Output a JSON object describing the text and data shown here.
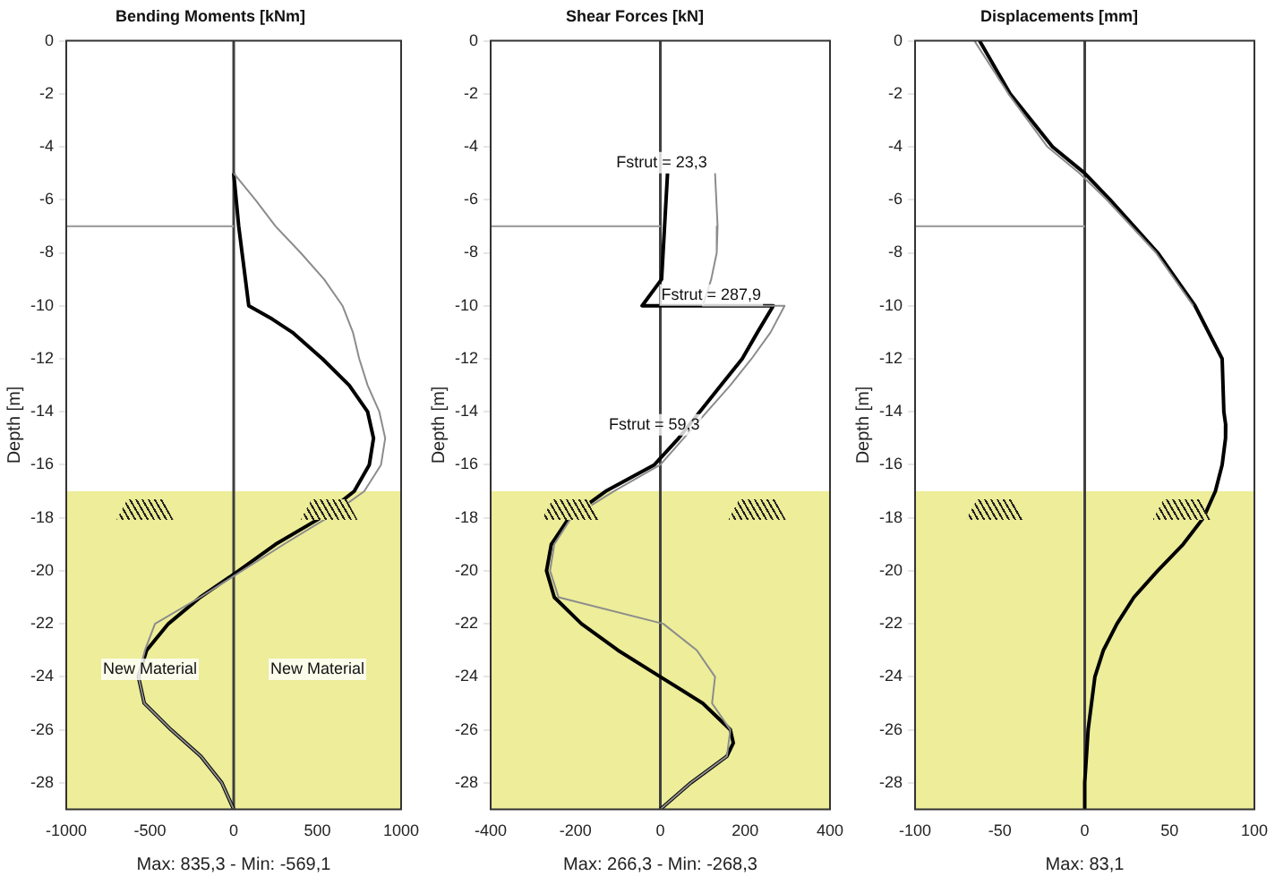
{
  "chart_data": [
    {
      "type": "line",
      "title": "Bending Moments [kNm]",
      "xlabel": "Max: 835,3 - Min: -569,1",
      "ylabel": "Depth [m]",
      "xlim": [
        -1000,
        1000
      ],
      "xticks": [
        -1000,
        -500,
        0,
        500,
        1000
      ],
      "ylim": [
        -29,
        0
      ],
      "yticks": [
        0,
        -2,
        -4,
        -6,
        -8,
        -10,
        -12,
        -14,
        -16,
        -18,
        -20,
        -22,
        -24,
        -26,
        -28
      ],
      "grid": false,
      "legend": false,
      "marker": "none",
      "bands": [
        {
          "axis": "y",
          "from": -17,
          "to": -29,
          "color": "#eded9a"
        }
      ],
      "ref_lines": [
        {
          "axis": "x",
          "value": 0,
          "color": "#404040"
        },
        {
          "axis": "y",
          "value": -7,
          "color": "#a0a0a0"
        }
      ],
      "annotations": [
        "New Material",
        "New Material"
      ],
      "series": [
        {
          "color": "#8c8c8c",
          "x": [
            0,
            130,
            250,
            400,
            540,
            650,
            712,
            750,
            800,
            870,
            905,
            880,
            780,
            560,
            300,
            50,
            -200,
            -470,
            -530,
            -569,
            -534,
            -374,
            -196,
            -71,
            0
          ],
          "values": [
            -5,
            -6,
            -7,
            -8,
            -9,
            -10,
            -11,
            -12,
            -13,
            -14,
            -15,
            -16,
            -17,
            -18,
            -19,
            -20,
            -21,
            -22,
            -23,
            -24,
            -25,
            -26,
            -27,
            -28,
            -29
          ]
        },
        {
          "color": "#000000",
          "x": [
            0,
            30,
            70,
            90,
            230,
            350,
            530,
            690,
            800,
            835.3,
            810,
            720,
            520,
            250,
            30,
            -200,
            -390,
            -520,
            -569.1,
            -534,
            -374,
            -196,
            -71,
            0
          ],
          "values": [
            -5,
            -7,
            -9,
            -10,
            -10.5,
            -11,
            -12,
            -13,
            -14,
            -15,
            -16,
            -17,
            -18,
            -19,
            -20,
            -21,
            -22,
            -23,
            -24,
            -25,
            -26,
            -27,
            -28,
            -29
          ]
        }
      ]
    },
    {
      "type": "line",
      "title": "Shear Forces [kN]",
      "xlabel": "Max: 266,3 - Min: -268,3",
      "ylabel": "Depth [m]",
      "xlim": [
        -400,
        400
      ],
      "xticks": [
        -400,
        -200,
        0,
        200,
        400
      ],
      "ylim": [
        -29,
        0
      ],
      "yticks": [
        0,
        -2,
        -4,
        -6,
        -8,
        -10,
        -12,
        -14,
        -16,
        -18,
        -20,
        -22,
        -24,
        -26,
        -28
      ],
      "grid": false,
      "legend": false,
      "marker": "none",
      "bands": [
        {
          "axis": "y",
          "from": -17,
          "to": -29,
          "color": "#eded9a"
        }
      ],
      "ref_lines": [
        {
          "axis": "x",
          "value": 0,
          "color": "#404040"
        },
        {
          "axis": "y",
          "value": -7,
          "color": "#a0a0a0"
        }
      ],
      "annotations": [
        {
          "text": "Fstrut = 23,3",
          "x": 3,
          "y": -5
        },
        {
          "text": "Fstrut = 287,9",
          "x": 120,
          "y": -10
        },
        {
          "text": "Fstrut = 59,3",
          "x": -14,
          "y": -14.9
        }
      ],
      "series": [
        {
          "color": "#8c8c8c",
          "x": [
            129,
            135,
            133,
            120,
            100,
            293,
            260,
            215,
            165,
            110,
            55,
            0,
            -110,
            -210,
            -250,
            -260,
            -240,
            7,
            86,
            129,
            122,
            165,
            157,
            72,
            0
          ],
          "values": [
            -5,
            -7,
            -8,
            -9,
            -10,
            -10,
            -11,
            -12,
            -13,
            -14,
            -15,
            -16,
            -17,
            -18,
            -19,
            -20,
            -21,
            -22,
            -23,
            -24,
            -25,
            -26,
            -27,
            -28,
            -29
          ]
        },
        {
          "color": "#000000",
          "x": [
            17,
            3,
            -43,
            266.3,
            229,
            193,
            143,
            93,
            43,
            -14,
            -129,
            -215,
            -257,
            -268.3,
            -250,
            -186,
            -100,
            0,
            100,
            165,
            172,
            157,
            72,
            0
          ],
          "values": [
            -5,
            -9,
            -10,
            -10,
            -11,
            -12,
            -13,
            -14,
            -15,
            -16,
            -17,
            -18,
            -19,
            -20,
            -21,
            -22,
            -23,
            -24,
            -25,
            -26,
            -26.5,
            -27,
            -28,
            -29
          ]
        }
      ]
    },
    {
      "type": "line",
      "title": "Displacements [mm]",
      "xlabel": "Max: 83,1",
      "ylabel": "Depth [m]",
      "xlim": [
        -100,
        100
      ],
      "xticks": [
        -100,
        -50,
        0,
        50,
        100
      ],
      "ylim": [
        -29,
        0
      ],
      "yticks": [
        0,
        -2,
        -4,
        -6,
        -8,
        -10,
        -12,
        -14,
        -16,
        -18,
        -20,
        -22,
        -24,
        -26,
        -28
      ],
      "grid": false,
      "legend": false,
      "marker": "none",
      "bands": [
        {
          "axis": "y",
          "from": -17,
          "to": -29,
          "color": "#eded9a"
        }
      ],
      "ref_lines": [
        {
          "axis": "x",
          "value": 0,
          "color": "#404040"
        },
        {
          "axis": "y",
          "value": -7,
          "color": "#a0a0a0"
        }
      ],
      "series": [
        {
          "color": "#8c8c8c",
          "x": [
            -65,
            -45,
            -22,
            -3,
            13,
            42,
            64
          ],
          "values": [
            0,
            -2,
            -4,
            -5,
            -6,
            -8,
            -10
          ]
        },
        {
          "color": "#000000",
          "x": [
            -62,
            -44,
            -19,
            0,
            15,
            43,
            65,
            81,
            82,
            83.1,
            83,
            81,
            77,
            70,
            58,
            43,
            29,
            19,
            11,
            6,
            2,
            0,
            0
          ],
          "values": [
            0,
            -2,
            -4,
            -5,
            -6,
            -8,
            -10,
            -12,
            -14,
            -14.5,
            -15,
            -16,
            -17,
            -18,
            -19,
            -20,
            -21,
            -22,
            -23,
            -24,
            -26,
            -28,
            -29
          ]
        }
      ]
    }
  ]
}
